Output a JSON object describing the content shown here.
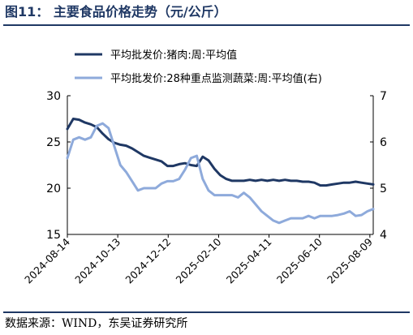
{
  "figure": {
    "title": "图11：  主要食品价格走势（元/公斤）",
    "source": "数据来源：WIND，东吴证券研究所"
  },
  "chart_data": {
    "type": "line",
    "title": "",
    "xlabel": "",
    "ylabel": "",
    "ylim": [
      15,
      30
    ],
    "y2lim": [
      4,
      7
    ],
    "y_ticks": [
      "15",
      "20",
      "25",
      "30"
    ],
    "y2_ticks": [
      "4",
      "5",
      "6",
      "7"
    ],
    "x_ticks": [
      "2024-08-14",
      "2024-10-13",
      "2024-12-12",
      "2025-02-10",
      "2025-04-11",
      "2025-06-10",
      "2025-08-09"
    ],
    "grid": false,
    "legend_position": "top-left",
    "colors": {
      "series1": "#1f3864",
      "series2": "#8eaadb"
    },
    "series": [
      {
        "name": "平均批发价:猪肉:周:平均值",
        "axis": "left",
        "x": [
          "2024-08-14",
          "2024-08-21",
          "2024-08-28",
          "2024-09-04",
          "2024-09-11",
          "2024-09-18",
          "2024-09-25",
          "2024-10-02",
          "2024-10-09",
          "2024-10-16",
          "2024-10-23",
          "2024-10-30",
          "2024-11-06",
          "2024-11-13",
          "2024-11-20",
          "2024-11-27",
          "2024-12-04",
          "2024-12-11",
          "2024-12-18",
          "2024-12-25",
          "2025-01-01",
          "2025-01-08",
          "2025-01-15",
          "2025-01-22",
          "2025-01-29",
          "2025-02-05",
          "2025-02-12",
          "2025-02-19",
          "2025-02-26",
          "2025-03-05",
          "2025-03-12",
          "2025-03-19",
          "2025-03-26",
          "2025-04-02",
          "2025-04-09",
          "2025-04-16",
          "2025-04-23",
          "2025-04-30",
          "2025-05-07",
          "2025-05-14",
          "2025-05-21",
          "2025-05-28",
          "2025-06-04",
          "2025-06-11",
          "2025-06-18",
          "2025-06-25",
          "2025-07-02",
          "2025-07-09",
          "2025-07-16",
          "2025-07-23",
          "2025-07-30",
          "2025-08-06",
          "2025-08-13"
        ],
        "values": [
          26.4,
          27.5,
          27.4,
          27.1,
          26.9,
          26.6,
          25.9,
          25.3,
          24.9,
          24.7,
          24.6,
          24.3,
          23.9,
          23.5,
          23.3,
          23.1,
          22.9,
          22.4,
          22.4,
          22.6,
          22.7,
          22.5,
          22.4,
          23.4,
          23.0,
          22.1,
          21.4,
          21.0,
          20.8,
          20.8,
          20.8,
          20.9,
          20.8,
          20.9,
          20.8,
          20.9,
          20.8,
          20.9,
          20.8,
          20.8,
          20.7,
          20.7,
          20.6,
          20.3,
          20.3,
          20.4,
          20.5,
          20.6,
          20.6,
          20.7,
          20.6,
          20.5,
          20.4
        ]
      },
      {
        "name": "平均批发价:28种重点监测蔬菜:周:平均值(右)",
        "axis": "right",
        "x": [
          "2024-08-14",
          "2024-08-21",
          "2024-08-28",
          "2024-09-04",
          "2024-09-11",
          "2024-09-18",
          "2024-09-25",
          "2024-10-02",
          "2024-10-09",
          "2024-10-16",
          "2024-10-23",
          "2024-10-30",
          "2024-11-06",
          "2024-11-13",
          "2024-11-20",
          "2024-11-27",
          "2024-12-04",
          "2024-12-11",
          "2024-12-18",
          "2024-12-25",
          "2025-01-01",
          "2025-01-08",
          "2025-01-15",
          "2025-01-22",
          "2025-01-29",
          "2025-02-05",
          "2025-02-12",
          "2025-02-19",
          "2025-02-26",
          "2025-03-05",
          "2025-03-12",
          "2025-03-19",
          "2025-03-26",
          "2025-04-02",
          "2025-04-09",
          "2025-04-16",
          "2025-04-23",
          "2025-04-30",
          "2025-05-07",
          "2025-05-14",
          "2025-05-21",
          "2025-05-28",
          "2025-06-04",
          "2025-06-11",
          "2025-06-18",
          "2025-06-25",
          "2025-07-02",
          "2025-07-09",
          "2025-07-16",
          "2025-07-23",
          "2025-07-30",
          "2025-08-06",
          "2025-08-13"
        ],
        "values": [
          5.65,
          6.05,
          6.1,
          6.05,
          6.1,
          6.35,
          6.4,
          6.3,
          5.9,
          5.5,
          5.35,
          5.15,
          4.95,
          5.0,
          5.0,
          5.0,
          5.1,
          5.15,
          5.15,
          5.2,
          5.4,
          5.65,
          5.7,
          5.2,
          4.95,
          4.85,
          4.85,
          4.85,
          4.85,
          4.8,
          4.9,
          4.8,
          4.65,
          4.5,
          4.4,
          4.3,
          4.25,
          4.3,
          4.35,
          4.35,
          4.35,
          4.4,
          4.35,
          4.4,
          4.4,
          4.4,
          4.42,
          4.45,
          4.5,
          4.4,
          4.42,
          4.5,
          4.55
        ]
      }
    ]
  }
}
